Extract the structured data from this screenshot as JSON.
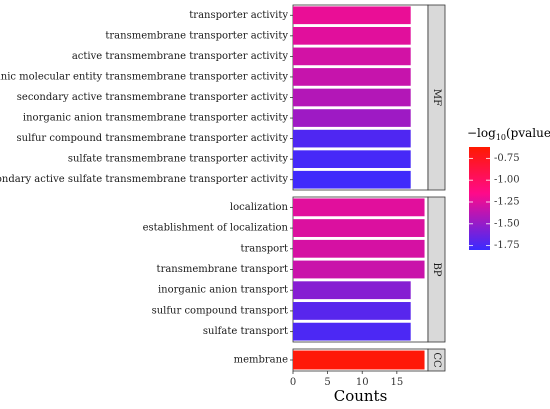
{
  "chart_data": {
    "type": "bar",
    "orientation": "horizontal",
    "xlabel": "Counts",
    "x_ticks": [
      0,
      5,
      10,
      15
    ],
    "xlim": [
      0,
      19.5
    ],
    "color_variable": "-log10(pvalue)",
    "legend": {
      "title_prefix": "−log",
      "title_sub": "10",
      "title_suffix": "(pvalue)",
      "placement": "right",
      "ticks": [
        "-0.75",
        "-1.00",
        "-1.25",
        "-1.50",
        "-1.75"
      ],
      "tick_values": [
        -0.75,
        -1.0,
        -1.25,
        -1.5,
        -1.75
      ],
      "range": [
        -1.8,
        -0.62
      ],
      "colors": {
        "low": "#3a2bff",
        "mid": "#ff0a8a",
        "high": "#ff1a00"
      }
    },
    "facets": [
      {
        "label": "MF",
        "bars": [
          {
            "category": "transporter activity",
            "count": 17,
            "neglog10p": -1.22
          },
          {
            "category": "transmembrane transporter activity",
            "count": 17,
            "neglog10p": -1.25
          },
          {
            "category": "active transmembrane transporter activity",
            "count": 17,
            "neglog10p": -1.3
          },
          {
            "category": "inorganic molecular entity transmembrane transporter activity",
            "count": 17,
            "neglog10p": -1.34
          },
          {
            "category": "secondary active transmembrane transporter activity",
            "count": 17,
            "neglog10p": -1.4
          },
          {
            "category": "inorganic anion transmembrane transporter activity",
            "count": 17,
            "neglog10p": -1.47
          },
          {
            "category": "sulfur compound transmembrane transporter activity",
            "count": 17,
            "neglog10p": -1.73
          },
          {
            "category": "sulfate transmembrane transporter activity",
            "count": 17,
            "neglog10p": -1.76
          },
          {
            "category": "secondary active sulfate transmembrane transporter activity",
            "count": 17,
            "neglog10p": -1.78
          }
        ]
      },
      {
        "label": "BP",
        "bars": [
          {
            "category": "localization",
            "count": 19,
            "neglog10p": -1.25
          },
          {
            "category": "establishment of localization",
            "count": 19,
            "neglog10p": -1.27
          },
          {
            "category": "transport",
            "count": 19,
            "neglog10p": -1.29
          },
          {
            "category": "transmembrane transport",
            "count": 19,
            "neglog10p": -1.33
          },
          {
            "category": "inorganic anion transport",
            "count": 17,
            "neglog10p": -1.55
          },
          {
            "category": "sulfur compound transport",
            "count": 17,
            "neglog10p": -1.7
          },
          {
            "category": "sulfate transport",
            "count": 17,
            "neglog10p": -1.74
          }
        ]
      },
      {
        "label": "CC",
        "bars": [
          {
            "category": "membrane",
            "count": 19,
            "neglog10p": -0.65
          }
        ]
      }
    ]
  }
}
